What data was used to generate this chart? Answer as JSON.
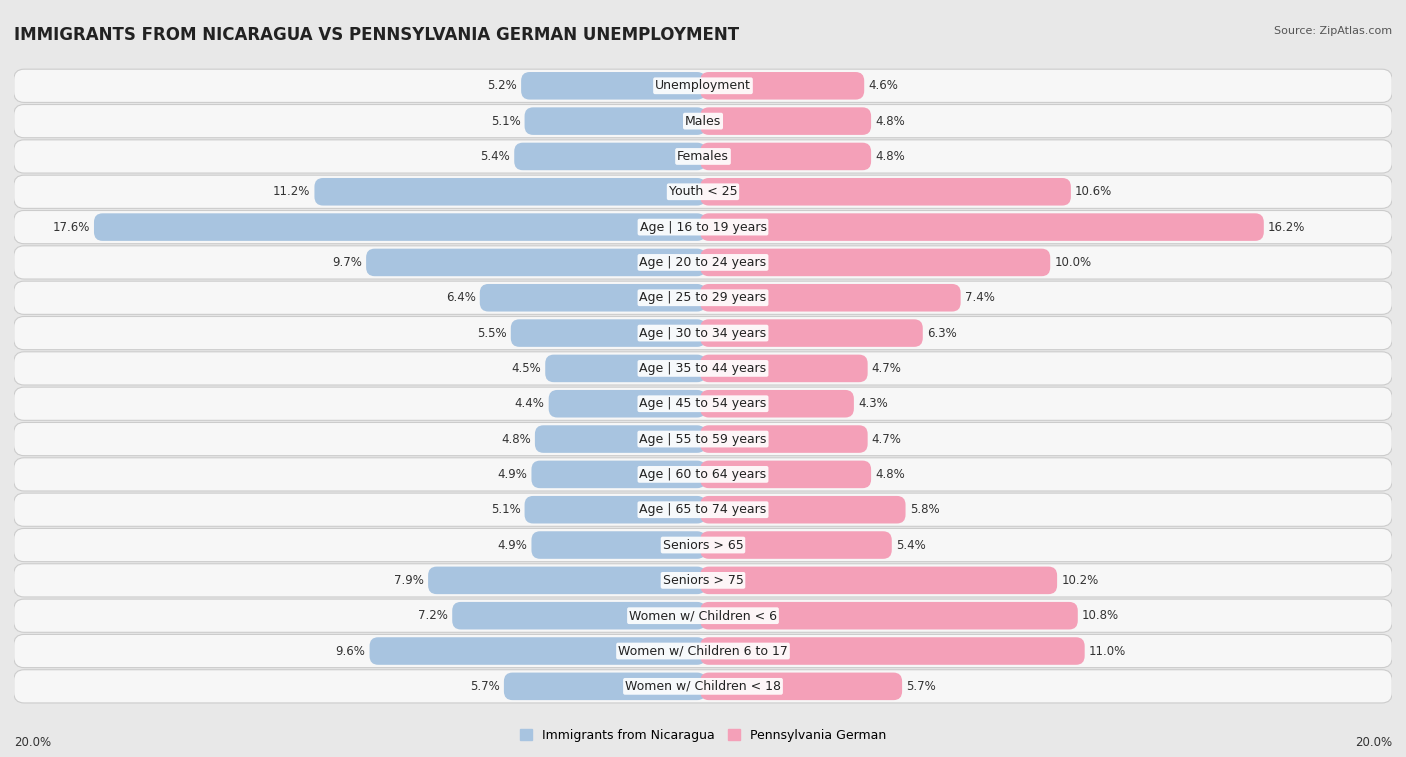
{
  "title": "IMMIGRANTS FROM NICARAGUA VS PENNSYLVANIA GERMAN UNEMPLOYMENT",
  "source": "Source: ZipAtlas.com",
  "categories": [
    "Unemployment",
    "Males",
    "Females",
    "Youth < 25",
    "Age | 16 to 19 years",
    "Age | 20 to 24 years",
    "Age | 25 to 29 years",
    "Age | 30 to 34 years",
    "Age | 35 to 44 years",
    "Age | 45 to 54 years",
    "Age | 55 to 59 years",
    "Age | 60 to 64 years",
    "Age | 65 to 74 years",
    "Seniors > 65",
    "Seniors > 75",
    "Women w/ Children < 6",
    "Women w/ Children 6 to 17",
    "Women w/ Children < 18"
  ],
  "nicaragua_values": [
    5.2,
    5.1,
    5.4,
    11.2,
    17.6,
    9.7,
    6.4,
    5.5,
    4.5,
    4.4,
    4.8,
    4.9,
    5.1,
    4.9,
    7.9,
    7.2,
    9.6,
    5.7
  ],
  "pennsylvania_values": [
    4.6,
    4.8,
    4.8,
    10.6,
    16.2,
    10.0,
    7.4,
    6.3,
    4.7,
    4.3,
    4.7,
    4.8,
    5.8,
    5.4,
    10.2,
    10.8,
    11.0,
    5.7
  ],
  "nicaragua_color": "#a8c4e0",
  "pennsylvania_color": "#f4a0b8",
  "bar_height": 0.62,
  "max_value": 20.0,
  "bg_color": "#e8e8e8",
  "row_bg_color": "#f5f5f5",
  "title_fontsize": 12,
  "label_fontsize": 9,
  "value_fontsize": 8.5,
  "legend_label_nicaragua": "Immigrants from Nicaragua",
  "legend_label_pennsylvania": "Pennsylvania German",
  "axis_label_left": "20.0%",
  "axis_label_right": "20.0%"
}
